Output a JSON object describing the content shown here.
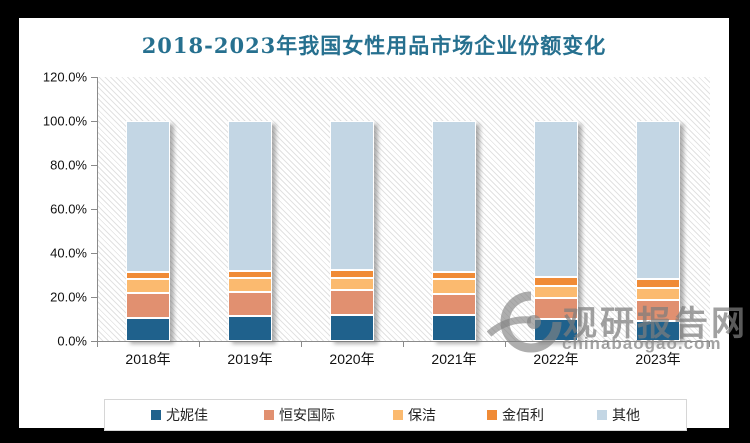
{
  "title": {
    "text": "2018-2023年我国女性用品市场企业份额变化",
    "color": "#26708F"
  },
  "watermark": {
    "logo": "swoosh-logo-icon",
    "cn_text": "观研报告网",
    "en_text": "chinabaogao.com"
  },
  "chart_data": {
    "type": "bar",
    "stacked": true,
    "orientation": "vertical",
    "categories": [
      "2018年",
      "2019年",
      "2020年",
      "2021年",
      "2022年",
      "2023年"
    ],
    "series": [
      {
        "name": "尤妮佳",
        "color": "#1F618C",
        "values": [
          10.5,
          11.5,
          12.0,
          12.0,
          10.0,
          9.0
        ]
      },
      {
        "name": "恒安国际",
        "color": "#E19070",
        "values": [
          11.5,
          11.0,
          11.0,
          9.5,
          9.5,
          9.5
        ]
      },
      {
        "name": "保洁",
        "color": "#FBBA6F",
        "values": [
          6.0,
          6.0,
          5.5,
          6.5,
          5.5,
          5.5
        ]
      },
      {
        "name": "金佰利",
        "color": "#F08B36",
        "values": [
          3.5,
          3.5,
          4.0,
          3.5,
          4.0,
          4.0
        ]
      },
      {
        "name": "其他",
        "color": "#C3D6E4",
        "values": [
          68.5,
          68.0,
          67.5,
          68.5,
          71.0,
          72.0
        ]
      }
    ],
    "ylim": [
      0,
      120
    ],
    "ytick_labels": [
      "0.0%",
      "20.0%",
      "40.0%",
      "60.0%",
      "80.0%",
      "100.0%",
      "120.0%"
    ],
    "grid": false,
    "plot_background": "diagonal-hatch",
    "legend_position": "bottom",
    "axis_color": "#8a8a8a"
  }
}
